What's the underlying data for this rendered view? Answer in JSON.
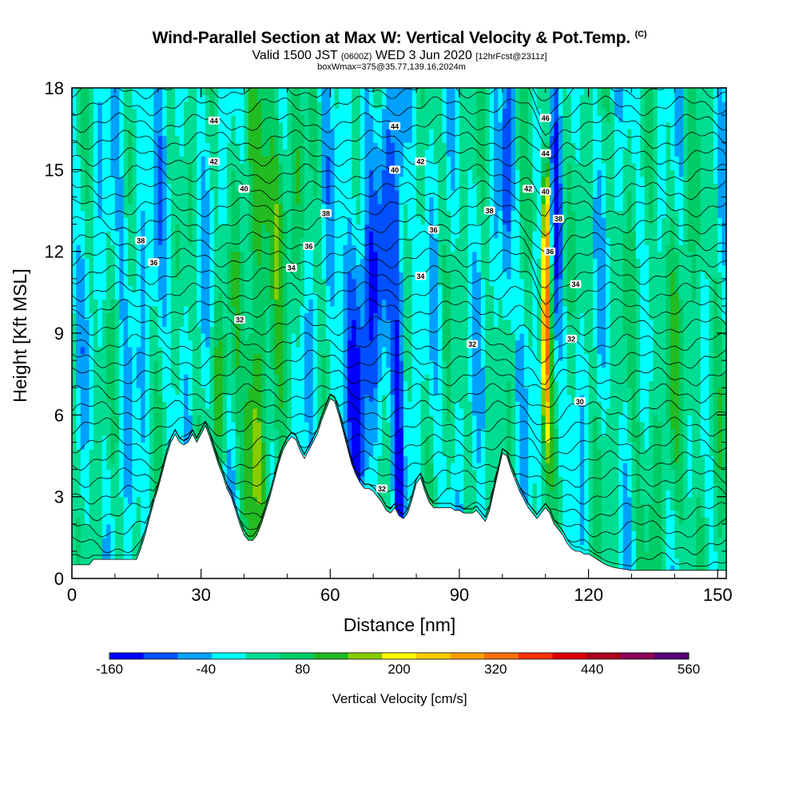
{
  "title": "Wind-Parallel Section at Max W: Vertical Velocity & Pot.Temp.",
  "title_mark": "(C)",
  "subtitle": {
    "valid": "Valid 1500 JST",
    "utc": "(0600Z)",
    "date": "WED 3 Jun 2020",
    "forecast": "[12hrFcst@2311z]"
  },
  "subtitle2": "boxWmax=375@35.77,139.16,2024m",
  "chart_data": {
    "type": "heatmap",
    "xlabel": "Distance [nm]",
    "ylabel": "Height [Kft MSL]",
    "xlim": [
      0,
      152
    ],
    "ylim": [
      0,
      18
    ],
    "x_ticks": [
      0,
      30,
      60,
      90,
      120,
      150
    ],
    "y_ticks": [
      0,
      3,
      6,
      9,
      12,
      15,
      18
    ],
    "grid": false,
    "colorbar": {
      "title": "Vertical Velocity [cm/s]",
      "min": -160,
      "max": 560,
      "labels": [
        -160,
        -40,
        80,
        200,
        320,
        440,
        560
      ],
      "colors": [
        "#0000ff",
        "#0050ff",
        "#00a0ff",
        "#00ffff",
        "#00dd90",
        "#00cc66",
        "#22bb22",
        "#88cc00",
        "#ffff00",
        "#ffcc00",
        "#ffa000",
        "#ff7000",
        "#ff3000",
        "#dd0000",
        "#aa0022",
        "#880055",
        "#550077"
      ]
    },
    "terrain_kft": [
      [
        0,
        0.5
      ],
      [
        4,
        0.5
      ],
      [
        5,
        0.7
      ],
      [
        10,
        0.7
      ],
      [
        15,
        0.7
      ],
      [
        16,
        1.1
      ],
      [
        17,
        1.6
      ],
      [
        18,
        2.2
      ],
      [
        19,
        2.8
      ],
      [
        20,
        3.3
      ],
      [
        21,
        3.9
      ],
      [
        22,
        4.5
      ],
      [
        23,
        5.0
      ],
      [
        24,
        5.3
      ],
      [
        25,
        5.0
      ],
      [
        26,
        4.9
      ],
      [
        27,
        5.0
      ],
      [
        28,
        5.3
      ],
      [
        29,
        5.0
      ],
      [
        30,
        5.3
      ],
      [
        31,
        5.6
      ],
      [
        32,
        5.2
      ],
      [
        33,
        4.7
      ],
      [
        34,
        4.2
      ],
      [
        35,
        3.8
      ],
      [
        36,
        3.3
      ],
      [
        37,
        3.0
      ],
      [
        38,
        2.5
      ],
      [
        39,
        2.0
      ],
      [
        40,
        1.6
      ],
      [
        41,
        1.4
      ],
      [
        42,
        1.4
      ],
      [
        43,
        1.6
      ],
      [
        44,
        2.0
      ],
      [
        45,
        2.5
      ],
      [
        46,
        3.0
      ],
      [
        47,
        3.6
      ],
      [
        48,
        4.2
      ],
      [
        49,
        4.7
      ],
      [
        50,
        5.0
      ],
      [
        51,
        5.2
      ],
      [
        52,
        5.1
      ],
      [
        53,
        4.7
      ],
      [
        54,
        4.4
      ],
      [
        55,
        4.7
      ],
      [
        56,
        5.0
      ],
      [
        57,
        5.3
      ],
      [
        58,
        5.8
      ],
      [
        59,
        6.2
      ],
      [
        60,
        6.6
      ],
      [
        61,
        6.5
      ],
      [
        62,
        6.0
      ],
      [
        63,
        5.4
      ],
      [
        64,
        4.8
      ],
      [
        65,
        4.2
      ],
      [
        66,
        3.8
      ],
      [
        67,
        3.5
      ],
      [
        68,
        3.3
      ],
      [
        69,
        3.3
      ],
      [
        70,
        3.2
      ],
      [
        71,
        3.0
      ],
      [
        72,
        2.8
      ],
      [
        73,
        2.5
      ],
      [
        74,
        2.4
      ],
      [
        75,
        2.6
      ],
      [
        76,
        2.3
      ],
      [
        77,
        2.2
      ],
      [
        78,
        2.4
      ],
      [
        79,
        2.9
      ],
      [
        80,
        3.5
      ],
      [
        81,
        3.7
      ],
      [
        82,
        3.2
      ],
      [
        83,
        2.8
      ],
      [
        84,
        2.6
      ],
      [
        85,
        2.6
      ],
      [
        86,
        2.6
      ],
      [
        87,
        2.6
      ],
      [
        88,
        2.6
      ],
      [
        89,
        2.5
      ],
      [
        90,
        2.5
      ],
      [
        91,
        2.4
      ],
      [
        92,
        2.4
      ],
      [
        93,
        2.4
      ],
      [
        94,
        2.5
      ],
      [
        95,
        2.3
      ],
      [
        96,
        2.1
      ],
      [
        97,
        2.5
      ],
      [
        98,
        3.2
      ],
      [
        99,
        3.9
      ],
      [
        100,
        4.6
      ],
      [
        101,
        4.5
      ],
      [
        102,
        4.0
      ],
      [
        103,
        3.6
      ],
      [
        104,
        3.2
      ],
      [
        105,
        2.9
      ],
      [
        106,
        2.6
      ],
      [
        107,
        2.4
      ],
      [
        108,
        2.2
      ],
      [
        109,
        2.4
      ],
      [
        110,
        2.6
      ],
      [
        111,
        2.4
      ],
      [
        112,
        2.0
      ],
      [
        113,
        1.8
      ],
      [
        114,
        1.6
      ],
      [
        115,
        1.3
      ],
      [
        116,
        1.1
      ],
      [
        117,
        1.0
      ],
      [
        118,
        1.0
      ],
      [
        119,
        0.9
      ],
      [
        120,
        0.9
      ],
      [
        121,
        0.8
      ],
      [
        122,
        0.7
      ],
      [
        123,
        0.6
      ],
      [
        124,
        0.5
      ],
      [
        126,
        0.4
      ],
      [
        130,
        0.3
      ],
      [
        135,
        0.3
      ],
      [
        140,
        0.3
      ],
      [
        145,
        0.3
      ],
      [
        150,
        0.3
      ],
      [
        152,
        0.3
      ]
    ],
    "potential_temperature_labels": [
      {
        "value": "44",
        "x": 33.0,
        "y": 16.8
      },
      {
        "value": "42",
        "x": 33.0,
        "y": 15.3
      },
      {
        "value": "40",
        "x": 40.0,
        "y": 14.3
      },
      {
        "value": "38",
        "x": 16.0,
        "y": 12.4
      },
      {
        "value": "36",
        "x": 19.0,
        "y": 11.6
      },
      {
        "value": "38",
        "x": 59.0,
        "y": 13.4
      },
      {
        "value": "36",
        "x": 55.0,
        "y": 12.2
      },
      {
        "value": "34",
        "x": 51.0,
        "y": 11.4
      },
      {
        "value": "32",
        "x": 39.0,
        "y": 9.5
      },
      {
        "value": "44",
        "x": 75.0,
        "y": 16.6
      },
      {
        "value": "40",
        "x": 75.0,
        "y": 15.0
      },
      {
        "value": "42",
        "x": 81.0,
        "y": 15.3
      },
      {
        "value": "36",
        "x": 84.0,
        "y": 12.8
      },
      {
        "value": "34",
        "x": 81.0,
        "y": 11.1
      },
      {
        "value": "32",
        "x": 93.0,
        "y": 8.6
      },
      {
        "value": "32",
        "x": 72.0,
        "y": 3.3
      },
      {
        "value": "38",
        "x": 97.0,
        "y": 13.5
      },
      {
        "value": "42",
        "x": 106.0,
        "y": 14.3
      },
      {
        "value": "46",
        "x": 110.0,
        "y": 16.9
      },
      {
        "value": "44",
        "x": 110.0,
        "y": 15.6
      },
      {
        "value": "40",
        "x": 110.0,
        "y": 14.2
      },
      {
        "value": "38",
        "x": 113.0,
        "y": 13.2
      },
      {
        "value": "36",
        "x": 111.0,
        "y": 12.0
      },
      {
        "value": "34",
        "x": 117.0,
        "y": 10.8
      },
      {
        "value": "32",
        "x": 116.0,
        "y": 8.8
      },
      {
        "value": "30",
        "x": 118.0,
        "y": 6.5
      }
    ]
  }
}
